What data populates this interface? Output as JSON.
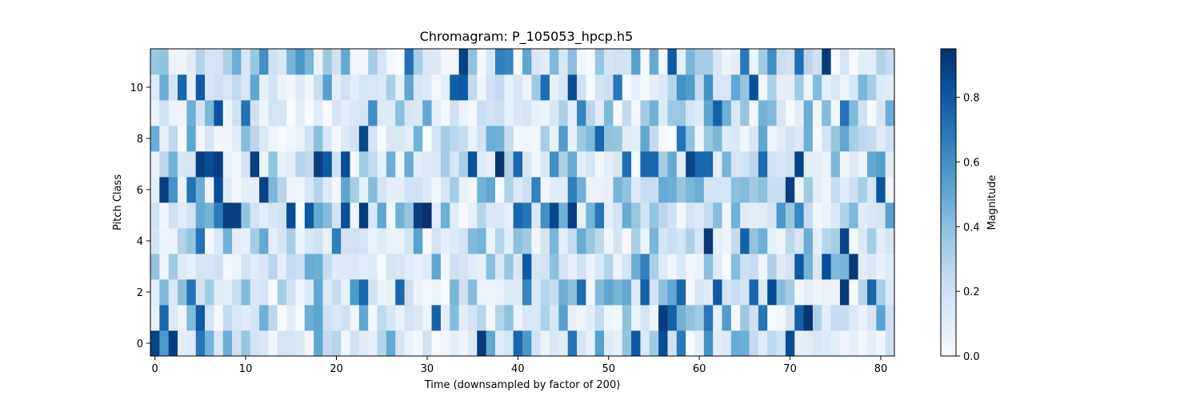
{
  "chart_data": {
    "type": "heatmap",
    "title": "Chromagram: P_105053_hpcp.h5",
    "xlabel": "Time (downsampled by factor of 200)",
    "ylabel": "Pitch Class",
    "colorbar_label": "Magnitude",
    "colormap": "Blues",
    "colormap_stops": [
      "#f7fbff",
      "#deebf7",
      "#c6dbef",
      "#9ecae1",
      "#6baed6",
      "#4292c6",
      "#2171b5",
      "#08519c",
      "#08306b"
    ],
    "n_frames": 82,
    "n_pitch_classes": 12,
    "xlim": [
      -0.5,
      81.5
    ],
    "ylim": [
      -0.5,
      11.5
    ],
    "clim": [
      0.0,
      0.95
    ],
    "x_ticks": [
      0,
      10,
      20,
      30,
      40,
      50,
      60,
      70,
      80
    ],
    "y_ticks": [
      0,
      2,
      4,
      6,
      8,
      10
    ],
    "colorbar_ticks": [
      0.0,
      0.2,
      0.4,
      0.6,
      0.8
    ],
    "colorbar_tick_labels": [
      "0.0",
      "0.2",
      "0.4",
      "0.6",
      "0.8"
    ],
    "origin": "lower"
  }
}
